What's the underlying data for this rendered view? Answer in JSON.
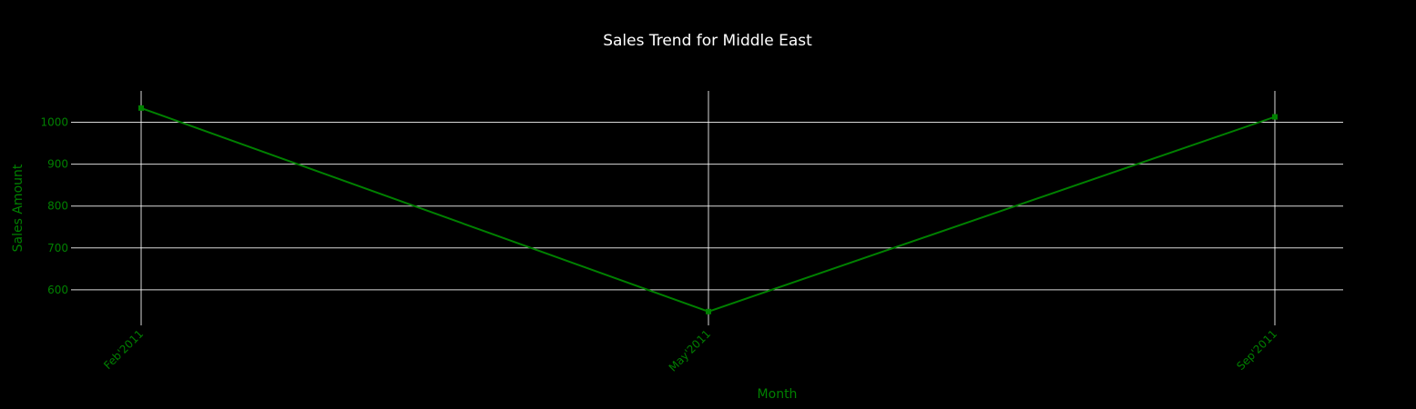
{
  "chart_data": {
    "type": "line",
    "title": "Sales Trend for Middle East",
    "xlabel": "Month",
    "ylabel": "Sales Amount",
    "categories": [
      "Feb'2011",
      "May'2011",
      "Sep'2011"
    ],
    "series": [
      {
        "values": [
          1034,
          548,
          1013
        ]
      }
    ],
    "yticks": [
      600,
      700,
      800,
      900,
      1000
    ],
    "ytick_labels": [
      "600",
      "700",
      "800",
      "900",
      "1000"
    ],
    "ylim": [
      515,
      1075
    ],
    "grid": true,
    "legend": "none",
    "colors": {
      "background": "#000000",
      "line": "#008000",
      "marker": "#008000",
      "grid": "#ffffff",
      "tick_text": "#008000",
      "axis_title": "#008000",
      "title": "#ffffff"
    }
  }
}
